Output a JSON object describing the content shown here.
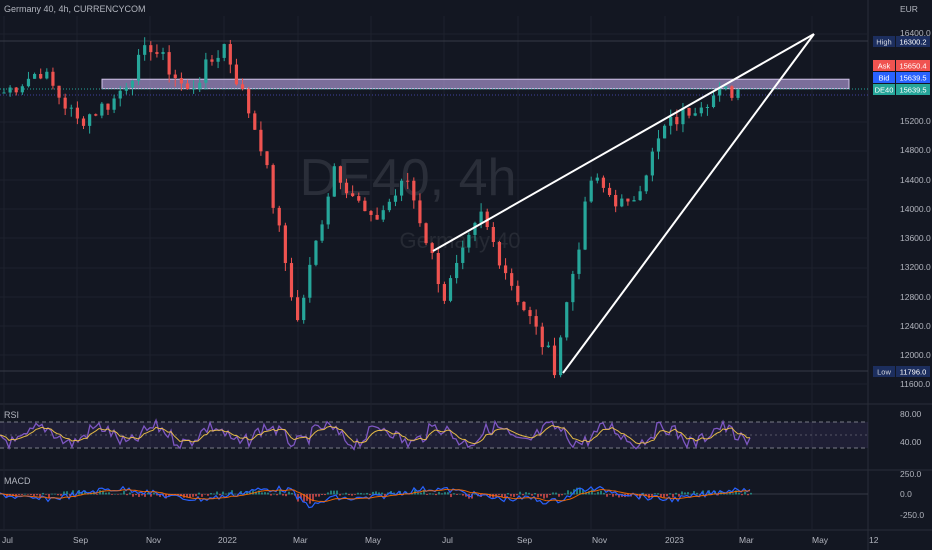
{
  "header": {
    "title": "Germany 40, 4h, CURRENCYCOM"
  },
  "watermark": {
    "symbol": "DE40, 4h",
    "name": "Germany 40"
  },
  "currency_label": "EUR",
  "price_axis": {
    "ticks": [
      "16400.0",
      "15200.0",
      "14800.0",
      "14400.0",
      "14000.0",
      "13600.0",
      "13200.0",
      "12800.0",
      "12400.0",
      "12000.0",
      "11600.0"
    ]
  },
  "badges": {
    "high": {
      "label": "High",
      "value": "16300.2",
      "color": "#1c2e5e"
    },
    "ask": {
      "label": "Ask",
      "value": "15650.4",
      "color": "#f05350"
    },
    "bid": {
      "label": "Bid",
      "value": "15639.5",
      "color": "#2962ff"
    },
    "last": {
      "label": "DE40",
      "value": "15639.5",
      "color": "#26a69a"
    },
    "low": {
      "label": "Low",
      "value": "11796.0",
      "color": "#1c2e5e"
    }
  },
  "rsi": {
    "label": "RSI",
    "ticks": [
      "80.00",
      "40.00"
    ],
    "color": "#7e57c2"
  },
  "macd": {
    "label": "MACD",
    "ticks": [
      "250.0",
      "0.0",
      "-250.0"
    ]
  },
  "time_axis": {
    "labels": [
      "Jul",
      "Sep",
      "Nov",
      "2022",
      "Mar",
      "May",
      "Jul",
      "Sep",
      "Nov",
      "2023",
      "Mar",
      "May",
      "12"
    ]
  },
  "colors": {
    "up": "#26a69a",
    "down": "#ef5350",
    "zone": "#b39ddb",
    "lines": "#ffffff"
  },
  "chart_data": {
    "type": "candlestick",
    "title": "Germany 40, 4h, CURRENCYCOM",
    "ylabel": "EUR",
    "ylim": [
      11500,
      16500
    ],
    "series": [
      {
        "name": "DE40",
        "points": [
          {
            "date": "2021-07",
            "close": 15600
          },
          {
            "date": "2021-08",
            "close": 15900
          },
          {
            "date": "2021-09",
            "close": 15200
          },
          {
            "date": "2021-10",
            "close": 15500
          },
          {
            "date": "2021-11",
            "close": 16250
          },
          {
            "date": "2021-12",
            "close": 15600
          },
          {
            "date": "2022-01",
            "close": 16250
          },
          {
            "date": "2022-02",
            "close": 14900
          },
          {
            "date": "2022-03",
            "close": 12450
          },
          {
            "date": "2022-04",
            "close": 14600
          },
          {
            "date": "2022-05",
            "close": 13800
          },
          {
            "date": "2022-06",
            "close": 14400
          },
          {
            "date": "2022-07",
            "close": 12800
          },
          {
            "date": "2022-08",
            "close": 13900
          },
          {
            "date": "2022-09",
            "close": 12800
          },
          {
            "date": "2022-10",
            "close": 11850
          },
          {
            "date": "2022-11",
            "close": 14400
          },
          {
            "date": "2022-12",
            "close": 14000
          },
          {
            "date": "2023-01",
            "close": 15100
          },
          {
            "date": "2023-02",
            "close": 15500
          },
          {
            "date": "2023-03",
            "close": 15639.5
          }
        ]
      }
    ],
    "horizontal_zone": [
      15650,
      15780
    ],
    "trend_lines": [
      {
        "name": "upper-wedge-line",
        "from": {
          "date": "2022-06-20",
          "value": 13400
        },
        "to": {
          "date": "2023-04-25",
          "value": 16400
        }
      },
      {
        "name": "lower-wedge-line",
        "from": {
          "date": "2022-10-10",
          "value": 11800
        },
        "to": {
          "date": "2023-04-25",
          "value": 16400
        }
      }
    ],
    "indicators": [
      "RSI",
      "MACD"
    ]
  }
}
